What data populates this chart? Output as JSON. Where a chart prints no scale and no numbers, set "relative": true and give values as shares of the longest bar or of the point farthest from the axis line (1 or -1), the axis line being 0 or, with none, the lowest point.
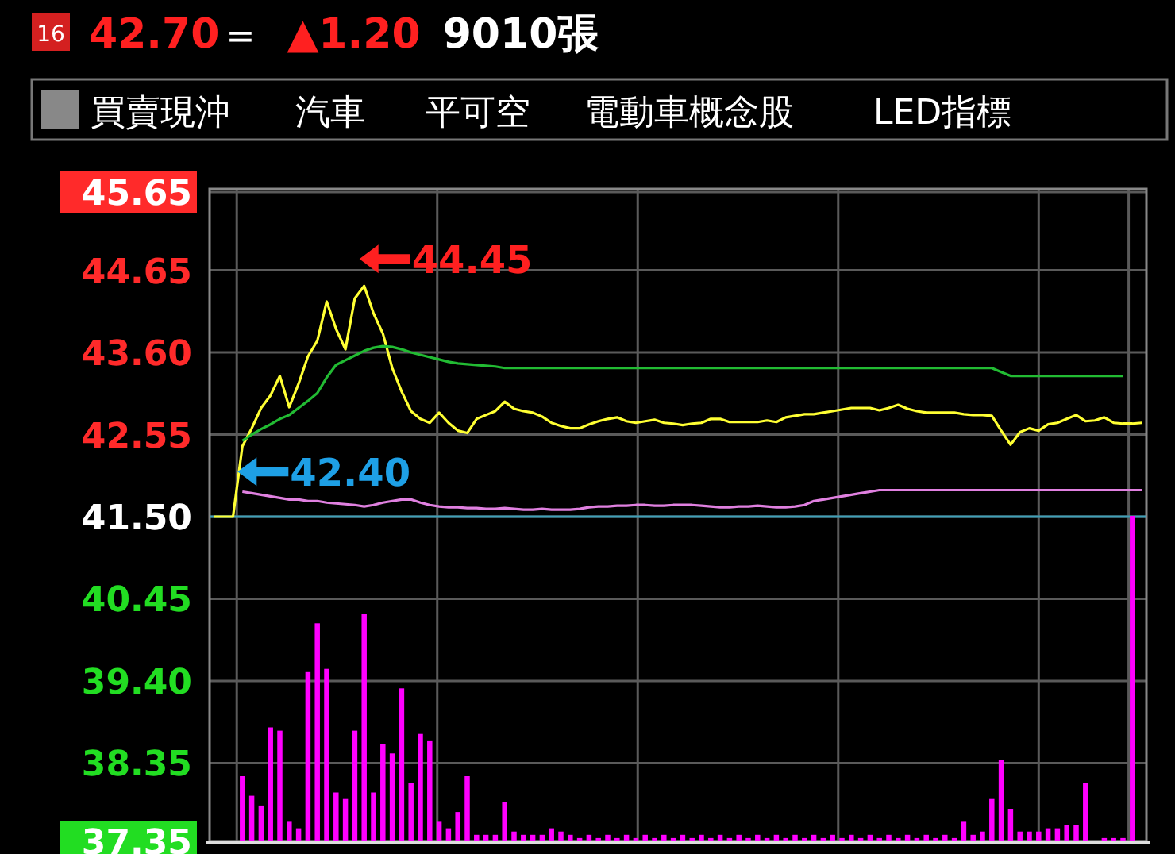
{
  "chart_data": [
    {
      "type": "line",
      "ylim": [
        37.35,
        45.65
      ],
      "yticks": [
        45.65,
        44.65,
        {
          "value": 43.6,
          "label": "43.60"
        },
        42.55,
        {
          "value": 41.5,
          "label": "41.50"
        },
        40.45,
        {
          "value": 39.4,
          "label": "39.40"
        },
        38.35,
        37.35
      ],
      "grid": true,
      "tick_labels": "y",
      "marker": "none",
      "line_style": "solid",
      "categories": [
        null,
        null,
        null,
        null,
        null,
        null,
        null,
        null,
        null,
        null,
        null,
        null,
        null,
        null,
        null,
        null,
        null,
        null,
        null,
        null,
        null,
        null,
        null,
        null,
        null,
        null,
        null,
        null,
        null,
        null,
        null,
        null,
        null,
        null,
        null,
        null,
        null,
        null,
        null,
        null,
        null,
        null,
        null,
        null,
        null,
        null,
        null,
        null,
        null,
        null,
        null,
        null,
        null,
        null,
        null,
        null,
        null,
        null,
        null,
        null,
        null,
        null,
        null,
        null,
        null,
        null,
        null,
        null,
        null,
        null,
        null,
        null,
        null,
        null,
        null,
        null,
        null,
        null,
        null,
        null,
        null,
        null,
        null,
        null,
        null,
        null,
        null,
        null,
        null,
        null,
        null,
        null,
        null,
        null,
        null,
        null,
        null,
        null,
        null,
        null
      ],
      "series": [
        {
          "color": "#ffff33",
          "values": [
            41.5,
            41.5,
            41.5,
            42.4,
            42.63,
            42.89,
            43.05,
            43.3,
            42.9,
            43.2,
            43.55,
            43.75,
            44.25,
            43.9,
            43.64,
            44.29,
            44.45,
            44.1,
            43.84,
            43.4,
            43.1,
            42.85,
            42.75,
            42.7,
            42.83,
            42.7,
            42.6,
            42.57,
            42.75,
            42.8,
            42.85,
            42.97,
            42.88,
            42.85,
            42.83,
            42.78,
            42.7,
            42.66,
            42.63,
            42.63,
            42.68,
            42.72,
            42.75,
            42.77,
            42.72,
            42.7,
            42.72,
            42.74,
            42.7,
            42.69,
            42.67,
            42.69,
            42.7,
            42.75,
            42.75,
            42.71,
            42.71,
            42.71,
            42.71,
            42.73,
            42.71,
            42.77,
            42.79,
            42.81,
            42.81,
            42.83,
            42.85,
            42.87,
            42.89,
            42.89,
            42.89,
            42.86,
            42.89,
            42.93,
            42.88,
            42.85,
            42.83,
            42.83,
            42.83,
            42.83,
            42.81,
            42.8,
            42.8,
            42.79,
            42.6,
            42.42,
            42.58,
            42.63,
            42.6,
            42.68,
            42.7,
            42.75,
            42.8,
            42.72,
            42.73,
            42.77,
            42.7,
            42.69,
            42.69,
            42.7
          ]
        },
        {
          "color": "#22bb33",
          "values": [
            null,
            null,
            null,
            42.47,
            42.55,
            42.62,
            42.68,
            42.75,
            42.8,
            42.89,
            42.98,
            43.08,
            43.28,
            43.44,
            43.5,
            43.56,
            43.62,
            43.66,
            43.68,
            43.67,
            43.64,
            43.6,
            43.57,
            43.54,
            43.51,
            43.48,
            43.46,
            43.45,
            43.44,
            43.43,
            43.42,
            43.4,
            43.4,
            43.4,
            43.4,
            43.4,
            43.4,
            43.4,
            43.4,
            43.4,
            43.4,
            43.4,
            43.4,
            43.4,
            43.4,
            43.4,
            43.4,
            43.4,
            43.4,
            43.4,
            43.4,
            43.4,
            43.4,
            43.4,
            43.4,
            43.4,
            43.4,
            43.4,
            43.4,
            43.4,
            43.4,
            43.4,
            43.4,
            43.4,
            43.4,
            43.4,
            43.4,
            43.4,
            43.4,
            43.4,
            43.4,
            43.4,
            43.4,
            43.4,
            43.4,
            43.4,
            43.4,
            43.4,
            43.4,
            43.4,
            43.4,
            43.4,
            43.4,
            43.4,
            43.35,
            43.3,
            43.3,
            43.3,
            43.3,
            43.3,
            43.3,
            43.3,
            43.3,
            43.3,
            43.3,
            43.3,
            43.3,
            43.3,
            null,
            null
          ]
        },
        {
          "color": "#e080e0",
          "values": [
            null,
            null,
            null,
            41.82,
            41.8,
            41.78,
            41.76,
            41.74,
            41.72,
            41.72,
            41.7,
            41.7,
            41.68,
            41.67,
            41.66,
            41.65,
            41.63,
            41.65,
            41.68,
            41.7,
            41.72,
            41.72,
            41.68,
            41.65,
            41.63,
            41.62,
            41.62,
            41.61,
            41.61,
            41.6,
            41.6,
            41.61,
            41.6,
            41.59,
            41.59,
            41.6,
            41.59,
            41.59,
            41.59,
            41.6,
            41.62,
            41.63,
            41.63,
            41.64,
            41.64,
            41.65,
            41.65,
            41.64,
            41.64,
            41.65,
            41.65,
            41.65,
            41.64,
            41.63,
            41.62,
            41.62,
            41.63,
            41.63,
            41.64,
            41.63,
            41.62,
            41.62,
            41.63,
            41.65,
            41.7,
            41.72,
            41.74,
            41.76,
            41.78,
            41.8,
            41.82,
            41.84,
            41.84,
            41.84,
            41.84,
            41.84,
            41.84,
            41.84,
            41.84,
            41.84,
            41.84,
            41.84,
            41.84,
            41.84,
            41.84,
            41.84,
            41.84,
            41.84,
            41.84,
            41.84,
            41.84,
            41.84,
            41.84,
            41.84,
            41.84,
            41.84,
            41.84,
            41.84,
            41.84,
            41.84
          ]
        }
      ],
      "ref_lines": [
        {
          "axis": "y",
          "value": 41.5,
          "color": "#3fa0b8"
        }
      ],
      "annotations": [
        "16",
        "42.70",
        "=",
        "▲1.20",
        "9010張",
        "買賣現沖",
        "汽車",
        "平可空",
        "電動車概念股",
        "LED指標",
        "44.45",
        "42.40"
      ]
    },
    {
      "type": "bar",
      "relative": true,
      "color": "#ff00ff",
      "categories": [
        null,
        null,
        null,
        null,
        null,
        null,
        null,
        null,
        null,
        null,
        null,
        null,
        null,
        null,
        null,
        null,
        null,
        null,
        null,
        null,
        null,
        null,
        null,
        null,
        null,
        null,
        null,
        null,
        null,
        null,
        null,
        null,
        null,
        null,
        null,
        null,
        null,
        null,
        null,
        null,
        null,
        null,
        null,
        null,
        null,
        null,
        null,
        null,
        null,
        null,
        null,
        null,
        null,
        null,
        null,
        null,
        null,
        null,
        null,
        null,
        null,
        null,
        null,
        null,
        null,
        null,
        null,
        null,
        null,
        null,
        null,
        null,
        null,
        null,
        null,
        null,
        null,
        null,
        null,
        null,
        null,
        null,
        null,
        null,
        null,
        null,
        null,
        null,
        null,
        null,
        null,
        null,
        null,
        null,
        null,
        null,
        null,
        null,
        null,
        null
      ],
      "values": [
        null,
        null,
        null,
        0.2,
        0.14,
        0.11,
        0.35,
        0.34,
        0.06,
        0.04,
        0.52,
        0.67,
        0.53,
        0.15,
        0.13,
        0.34,
        0.7,
        0.15,
        0.3,
        0.27,
        0.47,
        0.18,
        0.33,
        0.31,
        0.06,
        0.04,
        0.09,
        0.2,
        0.02,
        0.02,
        0.02,
        0.12,
        0.03,
        0.02,
        0.02,
        0.02,
        0.04,
        0.03,
        0.02,
        0.01,
        0.02,
        0.01,
        0.02,
        0.01,
        0.02,
        0.01,
        0.02,
        0.01,
        0.02,
        0.01,
        0.02,
        0.01,
        0.02,
        0.01,
        0.02,
        0.01,
        0.02,
        0.01,
        0.02,
        0.01,
        0.02,
        0.01,
        0.02,
        0.01,
        0.02,
        0.01,
        0.02,
        0.01,
        0.02,
        0.01,
        0.02,
        0.01,
        0.02,
        0.01,
        0.02,
        0.01,
        0.02,
        0.01,
        0.02,
        0.01,
        0.06,
        0.02,
        0.03,
        0.13,
        0.25,
        0.1,
        0.03,
        0.03,
        0.03,
        0.04,
        0.04,
        0.05,
        0.05,
        0.18,
        null,
        0.01,
        0.01,
        0.01,
        1.0,
        null
      ]
    }
  ]
}
